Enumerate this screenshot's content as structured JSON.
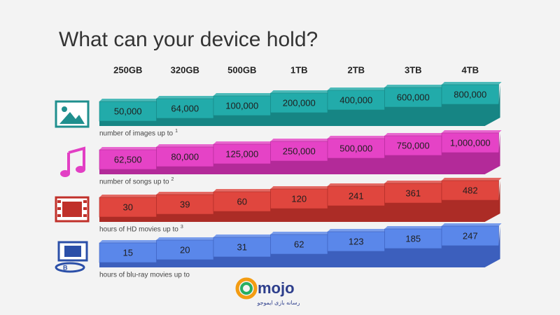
{
  "title": "What can your device hold?",
  "columns": [
    "250GB",
    "320GB",
    "500GB",
    "1TB",
    "2TB",
    "3TB",
    "4TB"
  ],
  "rows": [
    {
      "label": "number of images up to",
      "note": "1",
      "cells": [
        "50,000",
        "64,000",
        "100,000",
        "200,000",
        "400,000",
        "600,000",
        "800,000"
      ]
    },
    {
      "label": "number of songs up to",
      "note": "2",
      "cells": [
        "62,500",
        "80,000",
        "125,000",
        "250,000",
        "500,000",
        "750,000",
        "1,000,000"
      ]
    },
    {
      "label": "hours of HD movies up to",
      "note": "3",
      "cells": [
        "30",
        "39",
        "60",
        "120",
        "241",
        "361",
        "482"
      ]
    },
    {
      "label": "hours of blu-ray movies up to",
      "cells": [
        "15",
        "20",
        "31",
        "62",
        "123",
        "185",
        "247"
      ]
    }
  ],
  "logo": {
    "text": "mojo",
    "tagline": "رسانه بازی ایموجو"
  }
}
